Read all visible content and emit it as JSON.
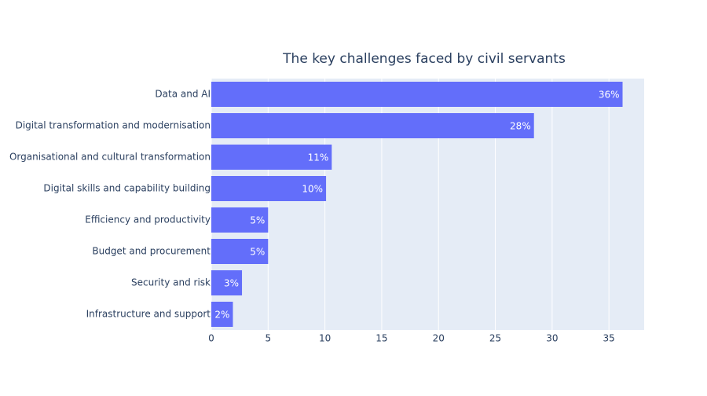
{
  "chart_data": {
    "type": "hbar",
    "title": "The key challenges faced by civil servants",
    "categories": [
      "Data and AI",
      "Digital transformation and modernisation",
      "Organisational and cultural transformation",
      "Digital skills and capability building",
      "Efficiency and productivity",
      "Budget and procurement",
      "Security and risk",
      "Infrastructure and support"
    ],
    "values": [
      36.2,
      28.4,
      10.6,
      10.1,
      5.0,
      5.0,
      2.7,
      1.9
    ],
    "value_labels": [
      "36%",
      "28%",
      "11%",
      "10%",
      "5%",
      "5%",
      "3%",
      "2%"
    ],
    "color": "#636efa",
    "xlim": [
      0,
      38.1
    ],
    "xticks": [
      0,
      5,
      10,
      15,
      20,
      25,
      30,
      35
    ],
    "grid": true
  }
}
